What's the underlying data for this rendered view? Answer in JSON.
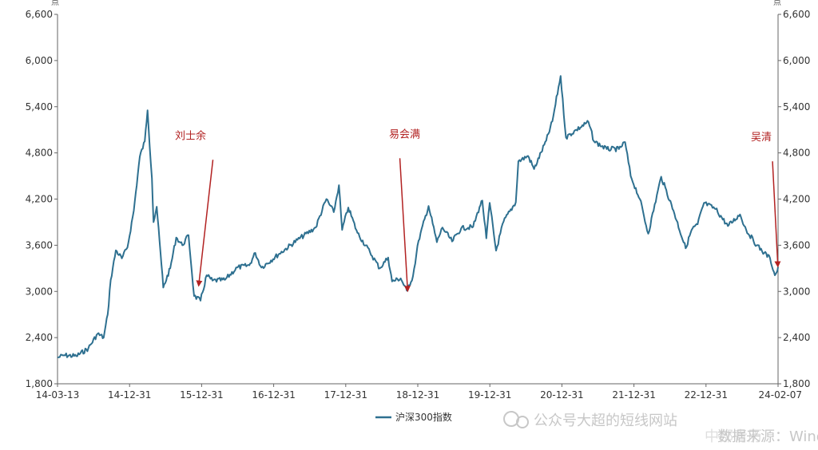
{
  "chart_data": {
    "type": "line",
    "title": "",
    "xlabel": "",
    "ylabel": "",
    "y_unit_left": "点",
    "y_unit_right": "点",
    "ylim": [
      1800,
      6600
    ],
    "y_ticks": [
      "1,800",
      "2,400",
      "3,000",
      "3,600",
      "4,200",
      "4,800",
      "5,400",
      "6,000",
      "6,600"
    ],
    "x_ticks": [
      "14-03-13",
      "14-12-31",
      "15-12-31",
      "16-12-31",
      "17-12-31",
      "18-12-31",
      "19-12-31",
      "20-12-31",
      "21-12-31",
      "22-12-31",
      "24-02-07"
    ],
    "grid": false,
    "legend_position": "bottom",
    "series": [
      {
        "name": "沪深300指数",
        "color": "#2e7090",
        "x": [
          "2014-03-13",
          "2014-04-15",
          "2014-06-15",
          "2014-08-15",
          "2014-09-30",
          "2014-10-31",
          "2014-11-20",
          "2014-12-05",
          "2014-12-31",
          "2015-01-30",
          "2015-02-27",
          "2015-03-31",
          "2015-04-30",
          "2015-05-25",
          "2015-06-08",
          "2015-06-30",
          "2015-07-08",
          "2015-07-24",
          "2015-08-17",
          "2015-08-26",
          "2015-09-30",
          "2015-10-30",
          "2015-11-30",
          "2015-12-31",
          "2016-01-28",
          "2016-02-29",
          "2016-03-31",
          "2016-04-29",
          "2016-06-30",
          "2016-08-31",
          "2016-10-31",
          "2016-11-30",
          "2016-12-31",
          "2017-03-31",
          "2017-06-30",
          "2017-09-29",
          "2017-11-22",
          "2017-12-29",
          "2018-01-24",
          "2018-02-09",
          "2018-03-12",
          "2018-04-27",
          "2018-06-29",
          "2018-08-17",
          "2018-09-28",
          "2018-10-18",
          "2018-11-30",
          "2018-12-31",
          "2019-01-31",
          "2019-02-28",
          "2019-04-19",
          "2019-05-31",
          "2019-06-28",
          "2019-08-15",
          "2019-09-30",
          "2019-11-29",
          "2019-12-31",
          "2020-01-14",
          "2020-02-03",
          "2020-02-20",
          "2020-03-23",
          "2020-04-30",
          "2020-06-30",
          "2020-07-13",
          "2020-08-31",
          "2020-09-30",
          "2020-11-30",
          "2020-12-31",
          "2021-02-10",
          "2021-03-09",
          "2021-04-30",
          "2021-06-30",
          "2021-07-28",
          "2021-09-30",
          "2021-11-30",
          "2021-12-31",
          "2022-01-28",
          "2022-03-15",
          "2022-04-26",
          "2022-06-30",
          "2022-08-31",
          "2022-10-31",
          "2022-11-30",
          "2022-12-30",
          "2023-01-31",
          "2023-03-31",
          "2023-05-31",
          "2023-07-31",
          "2023-08-31",
          "2023-10-23",
          "2023-11-30",
          "2023-12-29",
          "2024-01-22",
          "2024-02-02",
          "2024-02-07"
        ],
        "values": [
          2140,
          2170,
          2160,
          2260,
          2450,
          2400,
          2700,
          3150,
          3533,
          3430,
          3570,
          4050,
          4750,
          4950,
          5353,
          4470,
          3900,
          4100,
          3350,
          3050,
          3300,
          3700,
          3600,
          3731,
          2940,
          2880,
          3210,
          3140,
          3150,
          3310,
          3340,
          3500,
          3310,
          3490,
          3670,
          3830,
          4200,
          4030,
          4380,
          3800,
          4090,
          3760,
          3510,
          3300,
          3440,
          3130,
          3170,
          3010,
          3200,
          3660,
          4110,
          3640,
          3830,
          3650,
          3820,
          3840,
          4096,
          4180,
          3690,
          4150,
          3530,
          3910,
          4160,
          4690,
          4760,
          4590,
          4960,
          5211,
          5800,
          5000,
          5100,
          5200,
          4950,
          4850,
          4850,
          4940,
          4500,
          4200,
          3750,
          4490,
          4050,
          3560,
          3800,
          3872,
          4150,
          4070,
          3850,
          4000,
          3800,
          3600,
          3500,
          3431,
          3210,
          3260,
          3320
        ]
      }
    ],
    "annotations": [
      {
        "text": "刘士余",
        "date": "2016-02-20",
        "value": 3080,
        "text_date": "2016-01-10",
        "text_value": 4980
      },
      {
        "text": "易会满",
        "date": "2019-01-04",
        "value": 3010,
        "text_date": "2018-12-20",
        "text_value": 5000
      },
      {
        "text": "吴清",
        "date": "2024-02-06",
        "value": 3330,
        "text_date": "2023-11-15",
        "text_value": 4960
      }
    ]
  },
  "watermarks": [
    "公众号大超的短线网站",
    "数据来源：Wind",
    "中部青历"
  ]
}
